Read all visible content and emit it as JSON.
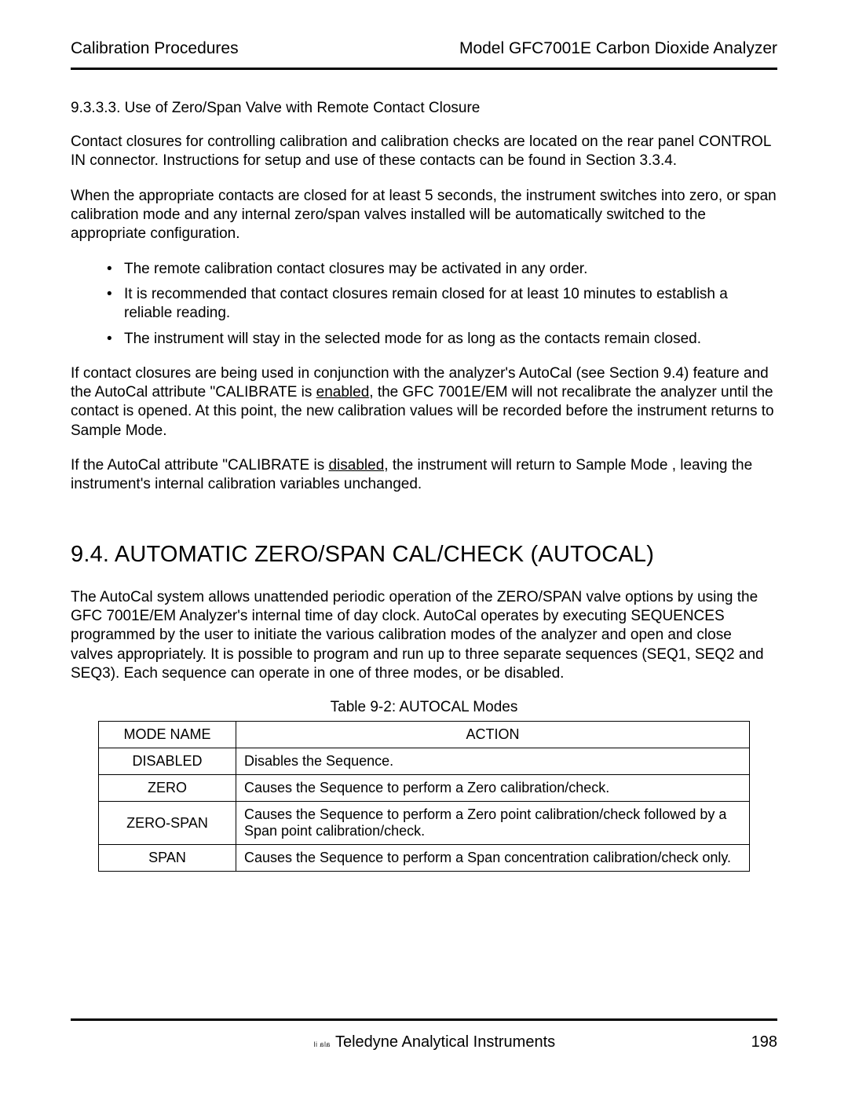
{
  "header": {
    "left": "Calibration Procedures",
    "right": "Model GFC7001E Carbon Dioxide Analyzer"
  },
  "subsection": {
    "number": "9.3.3.3.",
    "title": "Use of Zero/Span Valve with Remote Contact Closure"
  },
  "para1": "Contact closures for controlling calibration and calibration checks are located on the rear panel CONTROL IN connector.  Instructions for setup and use of these contacts can be found in Section 3.3.4.",
  "para2": "When the appropriate contacts are closed for at least 5 seconds, the instrument switches into zero, or span calibration mode and any internal zero/span valves installed will be automatically switched to the appropriate configuration.",
  "bullets": [
    "The remote calibration contact closures may be activated in any order.",
    "It is recommended that contact closures remain closed for at least 10 minutes to establish a reliable reading.",
    "The instrument will stay in the selected mode for as long as the contacts remain closed."
  ],
  "para3": {
    "a": "If contact closures are being used in conjunction with the analyzer's AutoCal (see Section 9.4) feature and the AutoCal attribute \"CALIBRATE    is ",
    "u": "enabled",
    "b": ", the GFC 7001E/EM will not recalibrate the analyzer until the contact is opened.  At this point, the new calibration values will be recorded before the instrument returns to Sample Mode."
  },
  "para4": {
    "a": "If the AutoCal attribute \"CALIBRATE    is ",
    "u": "disabled,",
    "b": " the instrument will return to Sample Mode , leaving the instrument's internal calibration variables unchanged."
  },
  "section": {
    "number": "9.4.",
    "title": "AUTOMATIC ZERO/SPAN CAL/CHECK (AUTOCAL)"
  },
  "para5": "The AutoCal system allows unattended periodic operation of the ZERO/SPAN valve options by using the GFC 7001E/EM Analyzer's internal time of day clock.  AutoCal operates by executing SEQUENCES programmed by the user to initiate the various calibration modes of the analyzer and open and close valves appropriately.  It is possible to program and run up to three separate sequences (SEQ1, SEQ2 and SEQ3).  Each sequence can operate in one of three modes, or be disabled.",
  "table": {
    "caption": "Table 9-2:   AUTOCAL Modes",
    "headers": {
      "mode": "MODE NAME",
      "action": "ACTION"
    },
    "rows": [
      {
        "mode": "DISABLED",
        "action": "Disables the Sequence."
      },
      {
        "mode": "ZERO",
        "action": "Causes the Sequence to perform a Zero calibration/check."
      },
      {
        "mode": "ZERO-SPAN",
        "action": "Causes the Sequence to perform a Zero point calibration/check followed by a Span point calibration/check."
      },
      {
        "mode": "SPAN",
        "action": "Causes the Sequence to perform a Span concentration calibration/check only."
      }
    ]
  },
  "footer": {
    "mark": "ala il",
    "company": "Teledyne Analytical Instruments",
    "page": "198"
  }
}
